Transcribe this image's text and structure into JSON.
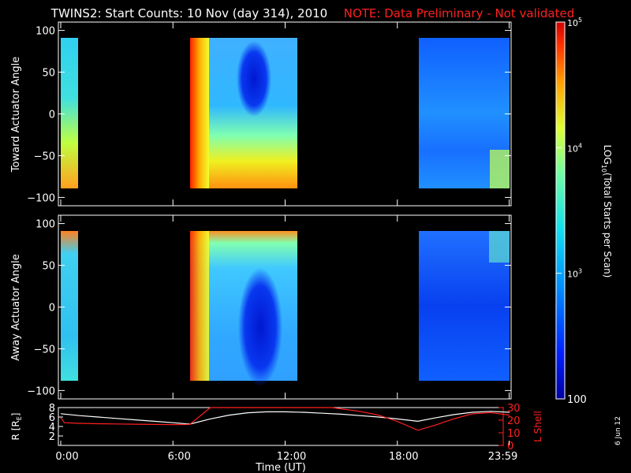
{
  "title": "TWINS2: Start Counts: 10 Nov (day 314), 2010",
  "note": "NOTE: Data Preliminary - Not validated",
  "stamp": "6 Jun 12",
  "colors": {
    "title": "#ffffff",
    "note": "#ff2020",
    "r_line": "#ffffff",
    "lshell_line": "#ff2020"
  },
  "chart_data": [
    {
      "type": "heatmap",
      "name": "toward",
      "ylabel": "Toward Actuator Angle",
      "ylim": [
        -110,
        110
      ],
      "yticks": [
        100,
        50,
        0,
        -50,
        -100
      ],
      "xlim_hours": [
        0,
        24
      ],
      "data_window_deg": [
        -90,
        90
      ],
      "segments": [
        {
          "start_hour": 0.0,
          "end_hour": 0.4,
          "level": "mid-high"
        },
        {
          "start_hour": 6.9,
          "end_hour": 12.1,
          "level": "high-to-low"
        },
        {
          "start_hour": 19.1,
          "end_hour": 24.0,
          "level": "low"
        }
      ]
    },
    {
      "type": "heatmap",
      "name": "away",
      "ylabel": "Away Actuator Angle",
      "ylim": [
        -110,
        110
      ],
      "yticks": [
        100,
        50,
        0,
        -50,
        -100
      ],
      "xlim_hours": [
        0,
        24
      ],
      "data_window_deg": [
        -90,
        90
      ],
      "segments": [
        {
          "start_hour": 0.0,
          "end_hour": 0.4,
          "level": "mid"
        },
        {
          "start_hour": 6.9,
          "end_hour": 12.1,
          "level": "high-to-low"
        },
        {
          "start_hour": 19.1,
          "end_hour": 24.0,
          "level": "low"
        }
      ]
    },
    {
      "type": "line",
      "name": "orbit",
      "ylabel_left": "R [R",
      "ylabel_left_sub": "E",
      "ylabel_left_end": "]",
      "ylabel_right": "L Shell",
      "xlabel": "Time (UT)",
      "xticks": [
        "0:00",
        "6:00",
        "12:00",
        "18:00",
        "23:59"
      ],
      "xtick_hours": [
        0,
        6,
        12,
        18,
        23.98
      ],
      "left_ylim": [
        0,
        8
      ],
      "left_yticks": [
        "8",
        "6",
        "4",
        "2"
      ],
      "right_ylim": [
        0,
        30
      ],
      "right_yticks": [
        "30",
        "20",
        "10",
        "0"
      ],
      "series": [
        {
          "name": "R",
          "axis": "left",
          "x": [
            0,
            1,
            2,
            3,
            4,
            5,
            6,
            6.9,
            8,
            9,
            10,
            11,
            12,
            13,
            14,
            15,
            16,
            17,
            18,
            19.1,
            20,
            21,
            22,
            23,
            24
          ],
          "y": [
            6.7,
            6.3,
            6.0,
            5.7,
            5.4,
            5.1,
            4.8,
            4.5,
            5.6,
            6.4,
            6.9,
            7.1,
            7.1,
            7.0,
            6.8,
            6.6,
            6.3,
            6.0,
            5.6,
            5.1,
            5.8,
            6.5,
            7.0,
            7.2,
            7.0
          ]
        },
        {
          "name": "L Shell",
          "axis": "right",
          "x": [
            0,
            0.2,
            1,
            2,
            3,
            4,
            5,
            6,
            6.9,
            8.0,
            14.5,
            15,
            16,
            17,
            18,
            19.1,
            20,
            21,
            22,
            23,
            24
          ],
          "y": [
            22,
            18,
            17.5,
            17.2,
            17,
            16.8,
            16.6,
            16.5,
            16.6,
            30,
            30,
            29,
            27,
            24,
            19,
            12,
            16,
            21,
            25,
            26,
            24
          ]
        }
      ]
    }
  ],
  "colorbar": {
    "label_prefix": "LOG",
    "label_sub": "10",
    "label_suffix": "(Total Starts per Scan)",
    "ticks": [
      {
        "exp": "5",
        "base": "10",
        "value": 100000
      },
      {
        "exp": "4",
        "base": "10",
        "value": 10000
      },
      {
        "exp": "3",
        "base": "10",
        "value": 1000
      },
      {
        "plain": "100",
        "value": 100
      }
    ],
    "range": [
      100,
      100000
    ]
  }
}
